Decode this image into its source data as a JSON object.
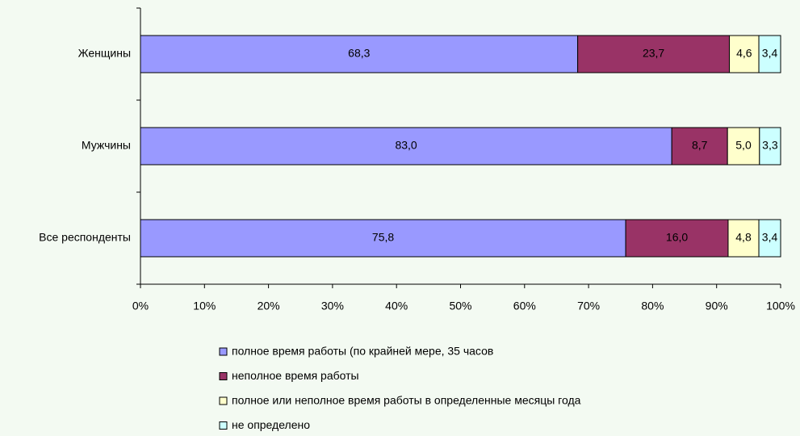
{
  "chart_data": {
    "type": "bar",
    "orientation": "horizontal",
    "stacked": true,
    "categories": [
      "Женщины",
      "Мужчины",
      "Все респонденты"
    ],
    "series": [
      {
        "name": "полное время работы (по крайней мере, 35 часов",
        "color": "#9999ff",
        "values": [
          68.3,
          83.0,
          75.8
        ],
        "value_labels": [
          "68,3",
          "83,0",
          "75,8"
        ]
      },
      {
        "name": "неполное время работы",
        "color": "#993366",
        "values": [
          23.7,
          8.7,
          16.0
        ],
        "value_labels": [
          "23,7",
          "8,7",
          "16,0"
        ]
      },
      {
        "name": "полное или неполное время работы в определенные месяцы года",
        "color": "#ffffcc",
        "values": [
          4.6,
          5.0,
          4.8
        ],
        "value_labels": [
          "4,6",
          "5,0",
          "4,8"
        ]
      },
      {
        "name": "не определено",
        "color": "#ccffff",
        "values": [
          3.4,
          3.3,
          3.4
        ],
        "value_labels": [
          "3,4",
          "3,3",
          "3,4"
        ]
      }
    ],
    "xlim": [
      0,
      100
    ],
    "xticks": [
      {
        "value": 0,
        "label": "0%"
      },
      {
        "value": 10,
        "label": "10%"
      },
      {
        "value": 20,
        "label": "20%"
      },
      {
        "value": 30,
        "label": "30%"
      },
      {
        "value": 40,
        "label": "40%"
      },
      {
        "value": 50,
        "label": "50%"
      },
      {
        "value": 60,
        "label": "60%"
      },
      {
        "value": 70,
        "label": "70%"
      },
      {
        "value": 80,
        "label": "80%"
      },
      {
        "value": 90,
        "label": "90%"
      },
      {
        "value": 100,
        "label": "100%"
      }
    ],
    "legend": "bottom",
    "grid": false
  }
}
